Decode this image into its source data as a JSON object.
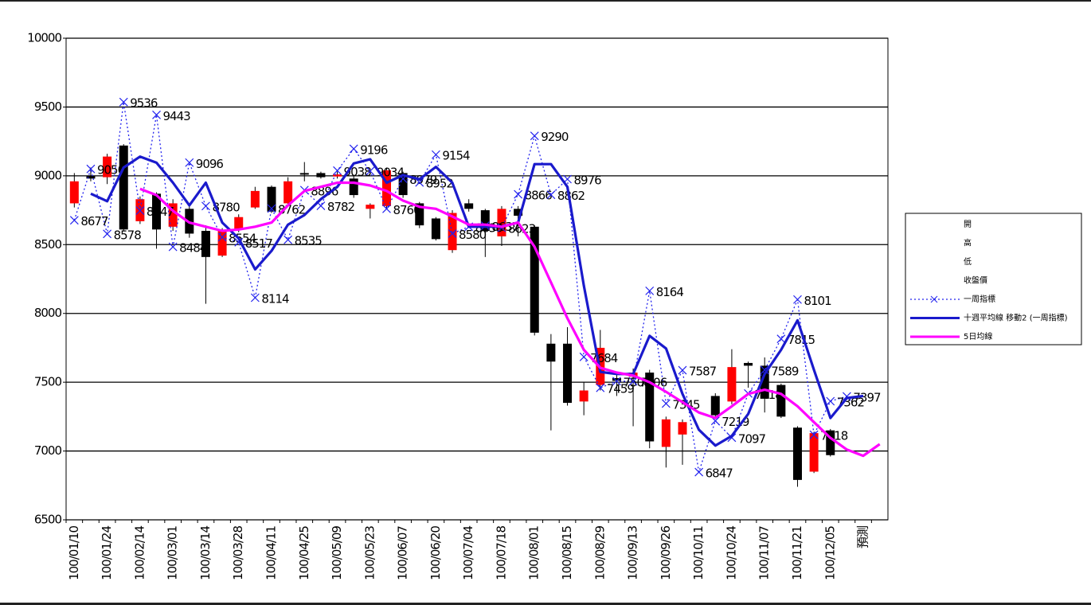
{
  "chart_data": {
    "type": "candlestick",
    "categories": [
      "100/01/10",
      null,
      "100/01/24",
      null,
      "100/02/14",
      null,
      "100/03/01",
      null,
      "100/03/14",
      null,
      "100/03/28",
      null,
      "100/04/11",
      null,
      "100/04/25",
      null,
      "100/05/09",
      null,
      "100/05/23",
      null,
      "100/06/07",
      null,
      "100/06/20",
      null,
      "100/07/04",
      null,
      "100/07/18",
      null,
      "100/08/01",
      null,
      "100/08/15",
      null,
      "100/08/29",
      null,
      "100/09/13",
      null,
      "100/09/26",
      null,
      "100/10/11",
      null,
      "100/10/24",
      null,
      "100/11/07",
      null,
      "100/11/21",
      null,
      "100/12/05",
      null,
      "預測",
      null
    ],
    "ylim": [
      6500,
      10000
    ],
    "yticks": [
      6500,
      7000,
      7500,
      8000,
      8500,
      9000,
      9500,
      10000
    ],
    "grid": true,
    "up_color": "#ff0000",
    "down_color": "#000000",
    "legend": "right",
    "series": [
      {
        "name": "開",
        "role": "open",
        "values": [
          8800,
          9000,
          8990,
          9220,
          8670,
          8870,
          8630,
          8760,
          8600,
          8420,
          8610,
          8770,
          8920,
          8800,
          9020,
          9020,
          8995,
          8980,
          8760,
          8780,
          9020,
          8800,
          8690,
          8460,
          8800,
          8750,
          8560,
          8760,
          8630,
          7780,
          7780,
          7360,
          7480,
          7530,
          7540,
          7570,
          7030,
          7120,
          null,
          7400,
          7360,
          7640,
          7620,
          7480,
          7170,
          6850,
          7150,
          null,
          null,
          null
        ]
      },
      {
        "name": "高",
        "role": "high",
        "values": [
          9020,
          9060,
          9160,
          9230,
          8850,
          8880,
          8830,
          8780,
          8640,
          8620,
          8720,
          8920,
          8930,
          8990,
          9100,
          9030,
          9030,
          9000,
          8800,
          9060,
          9030,
          8810,
          8700,
          8750,
          8830,
          8760,
          8780,
          8780,
          8640,
          7850,
          7900,
          7500,
          7880,
          7560,
          7600,
          7590,
          7250,
          7230,
          null,
          7420,
          7740,
          7650,
          7680,
          7490,
          7180,
          7140,
          7160,
          null,
          null,
          null
        ]
      },
      {
        "name": "低",
        "role": "low",
        "values": [
          8770,
          8960,
          8940,
          8600,
          8650,
          8470,
          8600,
          8550,
          8070,
          8410,
          8590,
          8760,
          8730,
          8780,
          8960,
          8980,
          8980,
          8840,
          8690,
          8760,
          8840,
          8620,
          8530,
          8440,
          8740,
          8410,
          8490,
          8560,
          7840,
          7150,
          7330,
          7260,
          7440,
          7400,
          7180,
          7020,
          6880,
          6900,
          null,
          7240,
          7340,
          7460,
          7280,
          7240,
          6740,
          6840,
          6960,
          null,
          null,
          null
        ]
      },
      {
        "name": "收盤價",
        "role": "close",
        "values": [
          8960,
          8980,
          9140,
          8610,
          8830,
          8610,
          8800,
          8580,
          8410,
          8600,
          8700,
          8890,
          8740,
          8960,
          9010,
          8990,
          9010,
          8860,
          8790,
          9040,
          8860,
          8640,
          8540,
          8730,
          8760,
          8600,
          8760,
          8710,
          7860,
          7650,
          7350,
          7440,
          7750,
          7510,
          7570,
          7070,
          7230,
          7210,
          null,
          7260,
          7610,
          7620,
          7380,
          7250,
          6790,
          7130,
          6970,
          null,
          null,
          null
        ]
      },
      {
        "name": "一周指標",
        "role": "line",
        "color": "#2222ee",
        "style": "dotted",
        "marker": "x",
        "labels": true,
        "values": [
          8677,
          9050,
          8578,
          9536,
          8747,
          9443,
          8484,
          9096,
          8780,
          8554,
          8517,
          8114,
          8762,
          8535,
          8896,
          8782,
          9038,
          9196,
          9034,
          8760,
          8979,
          8952,
          9154,
          8580,
          8630,
          8637,
          8623,
          8866,
          9290,
          8862,
          8976,
          7684,
          7459,
          7508,
          7506,
          8164,
          7345,
          7587,
          6847,
          7219,
          7097,
          7418,
          7589,
          7815,
          8101,
          7118,
          7362,
          7397,
          null,
          null
        ]
      },
      {
        "name": "十週平均線 移動2 (一周指標)",
        "role": "line",
        "color": "#1a1acc",
        "style": "solid",
        "values": [
          null,
          8870,
          8815,
          9060,
          9140,
          9095,
          8950,
          8785,
          8950,
          8660,
          8545,
          8320,
          8455,
          8645,
          8715,
          8830,
          8920,
          9090,
          9120,
          8950,
          9005,
          8975,
          9065,
          8950,
          8630,
          8630,
          8630,
          8660,
          9085,
          9085,
          8920,
          8200,
          7575,
          7560,
          7560,
          7837,
          7745,
          7415,
          7155,
          7040,
          7110,
          7270,
          7560,
          7735,
          7950,
          7590,
          7240,
          7385,
          7400,
          null
        ]
      },
      {
        "name": "5日均線",
        "role": "line",
        "color": "#ff00ff",
        "style": "solid",
        "values": [
          null,
          null,
          null,
          null,
          8905,
          8860,
          8745,
          8660,
          8630,
          8600,
          8610,
          8630,
          8660,
          8785,
          8890,
          8920,
          8950,
          8950,
          8930,
          8890,
          8820,
          8775,
          8760,
          8705,
          8645,
          8645,
          8630,
          8660,
          8485,
          8225,
          7965,
          7735,
          7605,
          7570,
          7548,
          7500,
          7430,
          7355,
          7280,
          7240,
          7325,
          7415,
          7445,
          7415,
          7325,
          7210,
          7095,
          7010,
          6965,
          7050
        ]
      }
    ]
  }
}
